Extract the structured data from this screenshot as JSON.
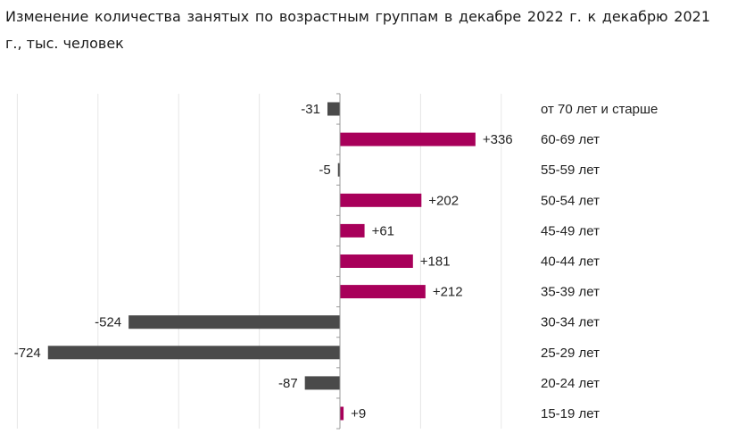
{
  "chart_data": {
    "type": "bar",
    "orientation": "horizontal",
    "title": "Изменение количества занятых по возрастным группам в декабре 2022 г. к декабрю 2021 г., тыс. человек",
    "categories": [
      "от 70 лет и старше",
      "60-69 лет",
      "55-59 лет",
      "50-54 лет",
      "45-49 лет",
      "40-44 лет",
      "35-39 лет",
      "30-34 лет",
      "25-29 лет",
      "20-24 лет",
      "15-19 лет"
    ],
    "values": [
      -31,
      336,
      -5,
      202,
      61,
      181,
      212,
      -524,
      -724,
      -87,
      9
    ],
    "value_labels": [
      "-31",
      "+336",
      "-5",
      "+202",
      "+61",
      "+181",
      "+212",
      "-524",
      "-724",
      "-87",
      "+9"
    ],
    "xlim": [
      -800,
      400
    ],
    "grid": "vertical",
    "category_labels_position": "right",
    "colors": {
      "positive": "#a8005a",
      "negative": "#4a4a4a",
      "grid": "#e6e6e6",
      "axis": "#9a9a9a"
    }
  }
}
